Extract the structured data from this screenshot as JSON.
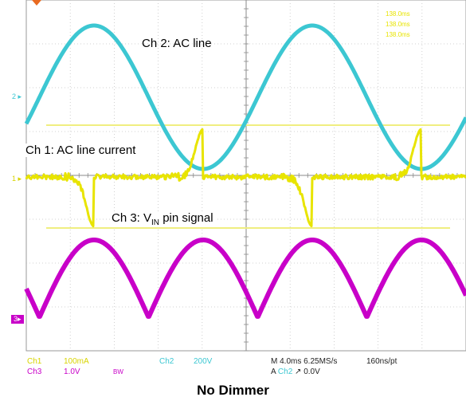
{
  "chart_data": {
    "type": "line",
    "caption": "No Dimmer",
    "timebase": "M 4.0ms 6.25MS/s",
    "record": "160ns/pt",
    "trigger_source": "Ch2",
    "trigger_level": "0.0V",
    "channels": [
      {
        "label": "Ch1",
        "scale": "100mA",
        "color": "#e8e400"
      },
      {
        "label": "Ch2",
        "scale": "200V",
        "color": "#3cc7d2"
      },
      {
        "label": "Ch3",
        "scale": "1.0V",
        "color": "#c800c8"
      }
    ],
    "bandwidth_flag": "BW",
    "annotations": {
      "ch2": "Ch 2: AC line",
      "ch1": "Ch 1: AC line current",
      "ch3_prefix": "Ch 3: V",
      "ch3_sub": "IN",
      "ch3_suffix": " pin signal"
    },
    "markers": {
      "ch2": "2",
      "ch1": "1",
      "ch3": "3"
    },
    "measurements": [
      "138.0ms",
      "138.0ms",
      "138.0ms"
    ],
    "grid": {
      "divisions_x": 10,
      "divisions_y": 8
    }
  }
}
